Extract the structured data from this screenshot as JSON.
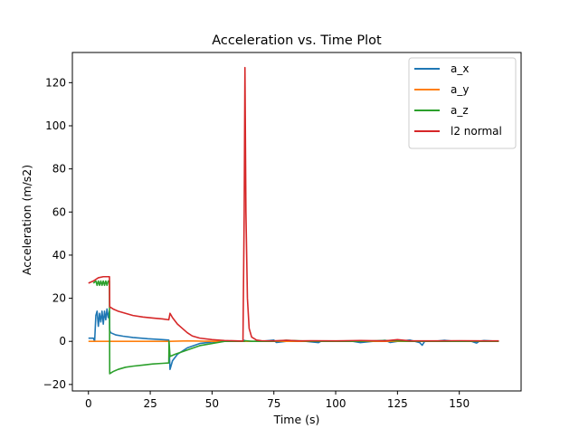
{
  "chart_data": {
    "type": "line",
    "title": "Acceleration vs. Time Plot",
    "xlabel": "Time (s)",
    "ylabel": "Acceleration (m/s2)",
    "xlim": [
      -6.5,
      175
    ],
    "ylim": [
      -23,
      134
    ],
    "xticks": [
      0,
      25,
      50,
      75,
      100,
      125,
      150
    ],
    "yticks": [
      -20,
      0,
      20,
      40,
      60,
      80,
      100,
      120
    ],
    "legend_position": "top-right",
    "grid": false,
    "series": [
      {
        "name": "a_x",
        "color": "#1f77b4",
        "points": [
          [
            0,
            1.5
          ],
          [
            2,
            1.5
          ],
          [
            2.5,
            0
          ],
          [
            3,
            12
          ],
          [
            3.5,
            14
          ],
          [
            4,
            7
          ],
          [
            4.5,
            13
          ],
          [
            5,
            9
          ],
          [
            5.5,
            14
          ],
          [
            6,
            8
          ],
          [
            6.5,
            14
          ],
          [
            7,
            10
          ],
          [
            7.5,
            15
          ],
          [
            8,
            11
          ],
          [
            8.5,
            14
          ],
          [
            8.6,
            5
          ],
          [
            9,
            4
          ],
          [
            11,
            3
          ],
          [
            14,
            2.4
          ],
          [
            18,
            1.8
          ],
          [
            24,
            1.2
          ],
          [
            30,
            0.8
          ],
          [
            32.5,
            0.6
          ],
          [
            33,
            -13
          ],
          [
            34,
            -9
          ],
          [
            36,
            -6
          ],
          [
            40,
            -3
          ],
          [
            45,
            -1
          ],
          [
            50,
            -0.3
          ],
          [
            55,
            0
          ],
          [
            60,
            0
          ],
          [
            62.8,
            0
          ],
          [
            63,
            0.5
          ],
          [
            63.5,
            0
          ],
          [
            70,
            0
          ],
          [
            75,
            0.6
          ],
          [
            76,
            -0.5
          ],
          [
            80,
            0
          ],
          [
            88,
            0
          ],
          [
            93,
            -0.6
          ],
          [
            94,
            0
          ],
          [
            100,
            0
          ],
          [
            107,
            0
          ],
          [
            110,
            -0.6
          ],
          [
            115,
            0
          ],
          [
            120,
            0.5
          ],
          [
            122,
            -0.5
          ],
          [
            125,
            0
          ],
          [
            130,
            0.6
          ],
          [
            134,
            -0.6
          ],
          [
            135,
            -1.8
          ],
          [
            136,
            0
          ],
          [
            140,
            0
          ],
          [
            144,
            0.5
          ],
          [
            148,
            0
          ],
          [
            155,
            0
          ],
          [
            157,
            -0.8
          ],
          [
            158,
            0
          ],
          [
            160,
            0.4
          ],
          [
            166,
            0
          ]
        ]
      },
      {
        "name": "a_y",
        "color": "#ff7f0e",
        "points": [
          [
            0,
            0
          ],
          [
            30,
            0
          ],
          [
            33,
            0
          ],
          [
            40,
            0.2
          ],
          [
            50,
            0
          ],
          [
            60,
            0
          ],
          [
            63,
            0
          ],
          [
            70,
            0
          ],
          [
            100,
            0
          ],
          [
            130,
            0
          ],
          [
            166,
            0
          ]
        ]
      },
      {
        "name": "a_z",
        "color": "#2ca02c",
        "points": [
          [
            2,
            27
          ],
          [
            3,
            28
          ],
          [
            3.5,
            26
          ],
          [
            4,
            28
          ],
          [
            4.5,
            26
          ],
          [
            5,
            28
          ],
          [
            5.5,
            26
          ],
          [
            6,
            28
          ],
          [
            6.5,
            26
          ],
          [
            7,
            28
          ],
          [
            7.5,
            26
          ],
          [
            8,
            28
          ],
          [
            8.5,
            28
          ],
          [
            8.6,
            -15
          ],
          [
            10,
            -14
          ],
          [
            12,
            -13
          ],
          [
            15,
            -12
          ],
          [
            18,
            -11.5
          ],
          [
            22,
            -11
          ],
          [
            26,
            -10.5
          ],
          [
            30,
            -10.2
          ],
          [
            32.5,
            -10
          ],
          [
            32.6,
            0
          ],
          [
            33,
            -7
          ],
          [
            35,
            -6
          ],
          [
            40,
            -4
          ],
          [
            45,
            -2
          ],
          [
            50,
            -1
          ],
          [
            55,
            0
          ],
          [
            60,
            0
          ],
          [
            63,
            0
          ],
          [
            63.5,
            0.3
          ],
          [
            66,
            0
          ],
          [
            75,
            0
          ],
          [
            80,
            0.5
          ],
          [
            90,
            0
          ],
          [
            100,
            0
          ],
          [
            110,
            0
          ],
          [
            120,
            0.4
          ],
          [
            130,
            0
          ],
          [
            140,
            0
          ],
          [
            150,
            0
          ],
          [
            160,
            0
          ],
          [
            166,
            0
          ]
        ]
      },
      {
        "name": "l2 normal",
        "color": "#d62728",
        "points": [
          [
            0,
            27
          ],
          [
            2,
            28
          ],
          [
            4,
            29.5
          ],
          [
            6,
            30
          ],
          [
            8,
            30
          ],
          [
            8.5,
            30
          ],
          [
            8.6,
            16
          ],
          [
            10,
            15
          ],
          [
            12,
            14
          ],
          [
            15,
            13
          ],
          [
            18,
            12
          ],
          [
            22,
            11.3
          ],
          [
            26,
            10.8
          ],
          [
            30,
            10.4
          ],
          [
            32.5,
            10
          ],
          [
            33,
            13
          ],
          [
            34,
            11
          ],
          [
            36,
            8
          ],
          [
            38,
            6
          ],
          [
            40,
            4
          ],
          [
            42,
            2.5
          ],
          [
            45,
            1.5
          ],
          [
            50,
            0.8
          ],
          [
            55,
            0.4
          ],
          [
            60,
            0.2
          ],
          [
            62.5,
            0.1
          ],
          [
            63,
            60
          ],
          [
            63.3,
            127
          ],
          [
            63.7,
            60
          ],
          [
            64.3,
            20
          ],
          [
            65,
            6
          ],
          [
            66,
            2
          ],
          [
            68,
            0.6
          ],
          [
            70,
            0.3
          ],
          [
            75,
            0.2
          ],
          [
            80,
            0.5
          ],
          [
            85,
            0.2
          ],
          [
            90,
            0.3
          ],
          [
            100,
            0.2
          ],
          [
            110,
            0.4
          ],
          [
            120,
            0.2
          ],
          [
            125,
            0.8
          ],
          [
            130,
            0.2
          ],
          [
            140,
            0.2
          ],
          [
            150,
            0.3
          ],
          [
            160,
            0.2
          ],
          [
            166,
            0.2
          ]
        ]
      }
    ]
  }
}
